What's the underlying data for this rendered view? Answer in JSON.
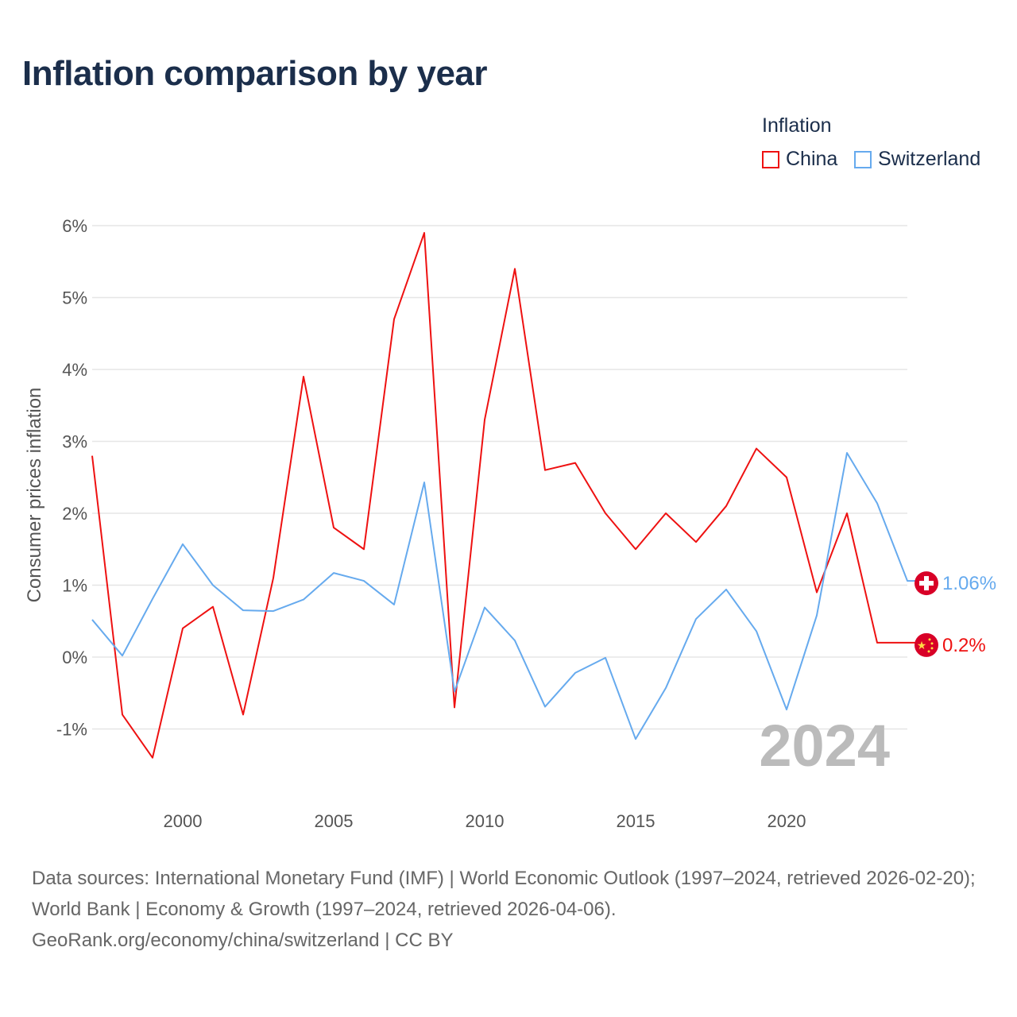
{
  "title": "Inflation comparison by year",
  "legend": {
    "title": "Inflation",
    "items": [
      "China",
      "Switzerland"
    ]
  },
  "source": {
    "line1": "Data sources: International Monetary Fund (IMF) | World Economic Outlook (1997–2024, retrieved 2026-02-20); World Bank | Economy & Growth (1997–2024, retrieved 2026-04-06).",
    "line2": "GeoRank.org/economy/china/switzerland | CC BY"
  },
  "colors": {
    "China": "#ee1111",
    "Switzerland": "#66aaee",
    "grid": "#e6e6e6",
    "flag_red": "#d80027"
  },
  "year_watermark": "2024",
  "chart_data": {
    "type": "line",
    "title": "Inflation comparison by year",
    "xlabel": "",
    "ylabel": "Consumer prices inflation",
    "xlim": [
      1997,
      2024
    ],
    "ylim": [
      -1.6,
      6.1
    ],
    "x_ticks": [
      2000,
      2005,
      2010,
      2015,
      2020
    ],
    "y_ticks": [
      -1,
      0,
      1,
      2,
      3,
      4,
      5,
      6
    ],
    "y_tick_labels": [
      "-1%",
      "0%",
      "1%",
      "2%",
      "3%",
      "4%",
      "5%",
      "6%"
    ],
    "grid": true,
    "legend_position": "top-right",
    "x": [
      1997,
      1998,
      1999,
      2000,
      2001,
      2002,
      2003,
      2004,
      2005,
      2006,
      2007,
      2008,
      2009,
      2010,
      2011,
      2012,
      2013,
      2014,
      2015,
      2016,
      2017,
      2018,
      2019,
      2020,
      2021,
      2022,
      2023,
      2024
    ],
    "series": [
      {
        "name": "China",
        "end_label": "0.2%",
        "flag": "china-flag",
        "values": [
          2.8,
          -0.8,
          -1.4,
          0.4,
          0.7,
          -0.8,
          1.1,
          3.9,
          1.8,
          1.5,
          4.7,
          5.9,
          -0.7,
          3.3,
          5.4,
          2.6,
          2.7,
          2.0,
          1.5,
          2.0,
          1.6,
          2.1,
          2.9,
          2.5,
          0.9,
          2.0,
          0.2,
          0.2
        ]
      },
      {
        "name": "Switzerland",
        "end_label": "1.06%",
        "flag": "switzerland-flag",
        "values": [
          0.52,
          0.02,
          0.81,
          1.57,
          1.0,
          0.65,
          0.64,
          0.8,
          1.17,
          1.06,
          0.73,
          2.43,
          -0.48,
          0.69,
          0.23,
          -0.69,
          -0.22,
          -0.01,
          -1.14,
          -0.43,
          0.53,
          0.94,
          0.36,
          -0.73,
          0.58,
          2.84,
          2.14,
          1.06
        ]
      }
    ]
  }
}
